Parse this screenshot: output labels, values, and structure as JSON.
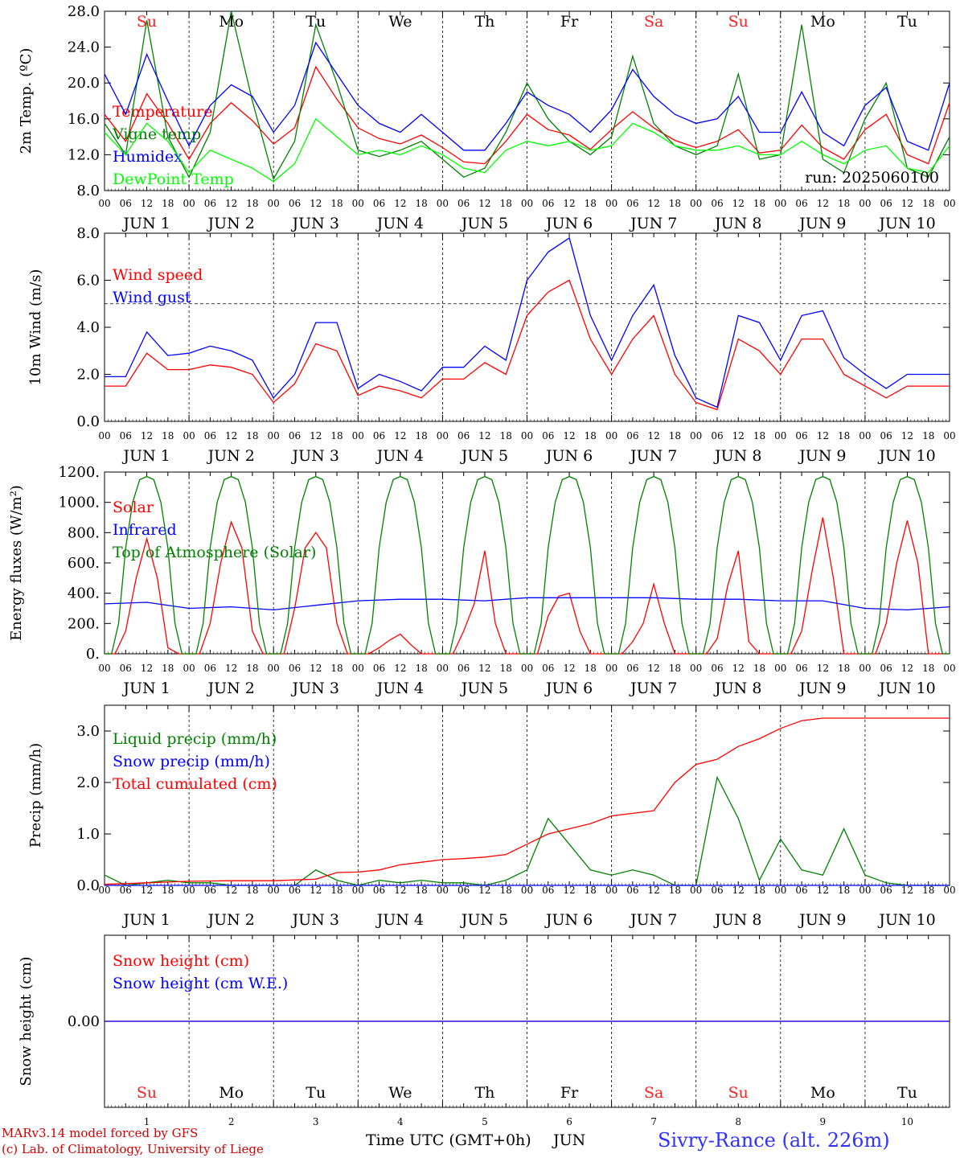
{
  "days": {
    "weekday_labels": [
      "Su",
      "Mo",
      "Tu",
      "We",
      "Th",
      "Fr",
      "Sa",
      "Su",
      "Mo",
      "Tu"
    ],
    "weekend_color": "#ff2020",
    "weekday_color": "#000000",
    "hour_labels": [
      "00",
      "06",
      "12",
      "18"
    ],
    "date_labels": [
      "JUN  1",
      "JUN  2",
      "JUN  3",
      "JUN  4",
      "JUN  5",
      "JUN  6",
      "JUN  7",
      "JUN  8",
      "JUN  9",
      "JUN 10"
    ],
    "day_numbers": [
      "1",
      "2",
      "3",
      "4",
      "5",
      "6",
      "7",
      "8",
      "9",
      "10"
    ]
  },
  "footer": {
    "model_line": "MARv3.14 model forced by GFS",
    "lab_line": "(c) Lab. of Climatology, University of Liege",
    "xlabel": "Time UTC (GMT+0h)",
    "month": "JUN",
    "station": "Sivry-Rance (alt. 226m)",
    "station_color": "#3030ff"
  },
  "chart_data": [
    {
      "type": "line",
      "ylabel": "2m Temp. (ºC)",
      "ylim": [
        8,
        28
      ],
      "yticks": [
        "8.0",
        "12.0",
        "16.0",
        "20.0",
        "24.0",
        "28.0"
      ],
      "annotation": "run: 2025060100",
      "x_unit": "hours since 2025-06-01 00 UTC",
      "series": [
        {
          "name": "Temperature",
          "color": "#ff0000",
          "x": [
            0,
            6,
            12,
            18,
            24,
            30,
            36,
            42,
            48,
            54,
            60,
            66,
            72,
            78,
            84,
            90,
            96,
            102,
            108,
            114,
            120,
            126,
            132,
            138,
            144,
            150,
            156,
            162,
            168,
            174,
            180,
            186,
            192,
            198,
            204,
            210,
            216,
            222,
            228,
            234,
            240
          ],
          "y": [
            16.5,
            13.5,
            18.8,
            15.5,
            11.5,
            15.5,
            17.8,
            15.8,
            13.2,
            15.0,
            21.8,
            18.2,
            15.0,
            13.8,
            13.2,
            14.2,
            12.8,
            11.2,
            11.0,
            13.5,
            16.5,
            14.8,
            14.2,
            12.6,
            14.8,
            16.8,
            15.0,
            13.6,
            12.8,
            13.5,
            14.8,
            12.2,
            12.5,
            15.3,
            12.8,
            11.5,
            14.8,
            16.5,
            12.0,
            11.0,
            17.8
          ]
        },
        {
          "name": "Vigne temp",
          "color": "#008000",
          "x": [
            0,
            6,
            12,
            18,
            24,
            30,
            36,
            42,
            48,
            54,
            60,
            66,
            72,
            78,
            84,
            90,
            96,
            102,
            108,
            114,
            120,
            126,
            132,
            138,
            144,
            150,
            156,
            162,
            168,
            174,
            180,
            186,
            192,
            198,
            204,
            210,
            216,
            222,
            228,
            234,
            240
          ],
          "y": [
            15.5,
            12.0,
            27.0,
            14.0,
            9.5,
            14.5,
            28.0,
            18.0,
            9.3,
            13.5,
            26.5,
            20.0,
            12.5,
            11.8,
            12.5,
            13.5,
            11.5,
            9.5,
            10.5,
            14.5,
            20.0,
            16.0,
            13.5,
            12.0,
            14.0,
            23.0,
            15.5,
            13.0,
            12.0,
            13.0,
            21.0,
            11.5,
            12.0,
            26.5,
            11.5,
            10.0,
            16.0,
            20.0,
            10.5,
            9.5,
            14.0
          ]
        },
        {
          "name": "Humidex",
          "color": "#0000ff",
          "x": [
            0,
            6,
            12,
            18,
            24,
            30,
            36,
            42,
            48,
            54,
            60,
            66,
            72,
            78,
            84,
            90,
            96,
            102,
            108,
            114,
            120,
            126,
            132,
            138,
            144,
            150,
            156,
            162,
            168,
            174,
            180,
            186,
            192,
            198,
            204,
            210,
            216,
            222,
            228,
            234,
            240
          ],
          "y": [
            21.0,
            16.5,
            23.2,
            18.0,
            13.0,
            17.5,
            19.8,
            18.5,
            14.5,
            17.5,
            24.5,
            21.0,
            17.5,
            15.5,
            14.5,
            16.5,
            14.5,
            12.5,
            12.5,
            15.5,
            19.0,
            17.5,
            16.5,
            14.5,
            17.0,
            21.5,
            18.5,
            16.5,
            15.5,
            16.0,
            18.5,
            14.5,
            14.5,
            19.0,
            14.5,
            13.0,
            17.5,
            19.5,
            13.5,
            12.5,
            20.0
          ]
        },
        {
          "name": "DewPoint Temp",
          "color": "#00ff00",
          "x": [
            0,
            6,
            12,
            18,
            24,
            30,
            36,
            42,
            48,
            54,
            60,
            66,
            72,
            78,
            84,
            90,
            96,
            102,
            108,
            114,
            120,
            126,
            132,
            138,
            144,
            150,
            156,
            162,
            168,
            174,
            180,
            186,
            192,
            198,
            204,
            210,
            216,
            222,
            228,
            234,
            240
          ],
          "y": [
            14.5,
            12.0,
            15.5,
            13.5,
            10.0,
            12.5,
            11.5,
            10.5,
            9.0,
            11.0,
            16.0,
            14.0,
            12.0,
            12.5,
            12.0,
            13.0,
            12.0,
            10.5,
            10.0,
            12.5,
            13.5,
            13.0,
            13.5,
            12.5,
            13.0,
            15.5,
            14.5,
            13.0,
            12.5,
            12.5,
            13.0,
            12.0,
            12.0,
            13.5,
            12.0,
            11.0,
            12.5,
            13.0,
            10.5,
            10.0,
            13.0
          ]
        }
      ]
    },
    {
      "type": "line",
      "ylabel": "10m Wind (m/s)",
      "ylim": [
        0,
        8
      ],
      "yticks": [
        "0.0",
        "2.0",
        "4.0",
        "6.0",
        "8.0"
      ],
      "reference_line": 5,
      "x_unit": "hours since 2025-06-01 00 UTC",
      "series": [
        {
          "name": "Wind speed",
          "color": "#ff0000",
          "x": [
            0,
            6,
            12,
            18,
            24,
            30,
            36,
            42,
            48,
            54,
            60,
            66,
            72,
            78,
            84,
            90,
            96,
            102,
            108,
            114,
            120,
            126,
            132,
            138,
            144,
            150,
            156,
            162,
            168,
            174,
            180,
            186,
            192,
            198,
            204,
            210,
            216,
            222,
            228,
            234,
            240
          ],
          "y": [
            1.5,
            1.5,
            2.9,
            2.2,
            2.2,
            2.4,
            2.3,
            2.0,
            0.8,
            1.6,
            3.3,
            3.0,
            1.1,
            1.5,
            1.3,
            1.0,
            1.8,
            1.8,
            2.5,
            2.0,
            4.5,
            5.5,
            6.0,
            3.5,
            2.0,
            3.5,
            4.5,
            2.0,
            0.8,
            0.5,
            3.5,
            3.0,
            2.0,
            3.5,
            3.5,
            2.0,
            1.5,
            1.0,
            1.5,
            1.5,
            1.5
          ]
        },
        {
          "name": "Wind gust",
          "color": "#0000ff",
          "x": [
            0,
            6,
            12,
            18,
            24,
            30,
            36,
            42,
            48,
            54,
            60,
            66,
            72,
            78,
            84,
            90,
            96,
            102,
            108,
            114,
            120,
            126,
            132,
            138,
            144,
            150,
            156,
            162,
            168,
            174,
            180,
            186,
            192,
            198,
            204,
            210,
            216,
            222,
            228,
            234,
            240
          ],
          "y": [
            1.9,
            1.9,
            3.8,
            2.8,
            2.9,
            3.2,
            3.0,
            2.6,
            1.0,
            2.0,
            4.2,
            4.2,
            1.4,
            2.0,
            1.7,
            1.3,
            2.3,
            2.3,
            3.2,
            2.6,
            6.0,
            7.2,
            7.8,
            4.5,
            2.6,
            4.5,
            5.8,
            2.8,
            1.0,
            0.6,
            4.5,
            4.2,
            2.6,
            4.5,
            4.7,
            2.7,
            2.0,
            1.4,
            2.0,
            2.0,
            2.0
          ]
        }
      ]
    },
    {
      "type": "line",
      "ylabel": "Energy fluxes (W/m²)",
      "ylim": [
        0,
        1200
      ],
      "yticks": [
        "0.",
        "200.",
        "400.",
        "600.",
        "800.",
        "1000.",
        "1200."
      ],
      "x_unit": "hours since 2025-06-01 00 UTC",
      "series": [
        {
          "name": "Solar",
          "color": "#ff0000",
          "x": [
            0,
            3,
            6,
            9,
            12,
            15,
            18,
            21,
            24,
            27,
            30,
            33,
            36,
            39,
            42,
            45,
            48,
            51,
            54,
            57,
            60,
            63,
            66,
            69,
            72,
            75,
            78,
            81,
            84,
            87,
            90,
            93,
            96,
            99,
            102,
            105,
            108,
            111,
            114,
            117,
            120,
            123,
            126,
            129,
            132,
            135,
            138,
            141,
            144,
            147,
            150,
            153,
            156,
            159,
            162,
            165,
            168,
            171,
            174,
            177,
            180,
            183,
            186,
            189,
            192,
            195,
            198,
            201,
            204,
            207,
            210,
            213,
            216,
            219,
            222,
            225,
            228,
            231,
            234,
            237,
            240
          ],
          "y": [
            0,
            0,
            150,
            500,
            760,
            500,
            40,
            0,
            0,
            0,
            200,
            600,
            870,
            700,
            150,
            0,
            0,
            0,
            300,
            700,
            800,
            700,
            200,
            0,
            0,
            0,
            40,
            90,
            130,
            60,
            0,
            0,
            0,
            0,
            150,
            330,
            680,
            200,
            0,
            0,
            0,
            0,
            250,
            380,
            400,
            150,
            0,
            0,
            0,
            0,
            80,
            200,
            460,
            200,
            0,
            0,
            0,
            0,
            100,
            450,
            680,
            80,
            0,
            0,
            0,
            0,
            150,
            550,
            900,
            500,
            0,
            0,
            0,
            0,
            200,
            600,
            880,
            600,
            0,
            0,
            0
          ]
        },
        {
          "name": "Infrared",
          "color": "#0000ff",
          "x": [
            0,
            12,
            24,
            36,
            48,
            60,
            72,
            84,
            96,
            108,
            120,
            132,
            144,
            156,
            168,
            180,
            192,
            204,
            216,
            228,
            240
          ],
          "y": [
            330,
            340,
            300,
            310,
            290,
            320,
            350,
            360,
            360,
            350,
            370,
            370,
            370,
            370,
            360,
            360,
            350,
            350,
            300,
            290,
            310
          ]
        },
        {
          "name": "Top of Atmosphere (Solar)",
          "color": "#008000",
          "x": [
            0,
            2,
            4,
            6,
            8,
            10,
            12,
            14,
            16,
            18,
            20,
            22,
            24
          ],
          "y": [
            0,
            0,
            200,
            700,
            1000,
            1150,
            1170,
            1150,
            1000,
            700,
            200,
            0,
            0
          ],
          "note": "repeats daily"
        }
      ]
    },
    {
      "type": "line",
      "ylabel": "Precip (mm/h)",
      "ylim": [
        0,
        3.5
      ],
      "yticks": [
        "0.0",
        "1.0",
        "2.0",
        "3.0"
      ],
      "x_unit": "hours since 2025-06-01 00 UTC",
      "series": [
        {
          "name": "Liquid precip (mm/h)",
          "color": "#008000",
          "x": [
            0,
            6,
            12,
            18,
            24,
            30,
            36,
            42,
            48,
            54,
            60,
            66,
            72,
            78,
            84,
            90,
            96,
            102,
            108,
            114,
            120,
            126,
            132,
            138,
            144,
            150,
            156,
            162,
            168,
            174,
            180,
            186,
            192,
            198,
            204,
            210,
            216,
            222,
            228,
            234,
            240
          ],
          "y": [
            0.2,
            0.0,
            0.05,
            0.1,
            0.05,
            0.05,
            0.0,
            0.0,
            0.0,
            0.0,
            0.3,
            0.1,
            0.0,
            0.1,
            0.05,
            0.1,
            0.05,
            0.05,
            0.0,
            0.1,
            0.3,
            1.3,
            0.8,
            0.3,
            0.2,
            0.3,
            0.2,
            0.0,
            0.0,
            2.1,
            1.3,
            0.1,
            0.9,
            0.3,
            0.2,
            1.1,
            0.2,
            0.05,
            0.0,
            0.0,
            0.0
          ]
        },
        {
          "name": "Snow precip (mm/h)",
          "color": "#0000ff",
          "x": [
            0,
            240
          ],
          "y": [
            0,
            0
          ]
        },
        {
          "name": "Total cumulated (cm)",
          "color": "#ff0000",
          "x": [
            0,
            12,
            24,
            36,
            48,
            60,
            66,
            72,
            78,
            84,
            90,
            96,
            102,
            108,
            114,
            120,
            126,
            132,
            138,
            144,
            150,
            156,
            162,
            168,
            174,
            180,
            186,
            192,
            198,
            204,
            210,
            216,
            222,
            228,
            234,
            240
          ],
          "y": [
            0.02,
            0.05,
            0.08,
            0.09,
            0.09,
            0.12,
            0.25,
            0.26,
            0.3,
            0.4,
            0.45,
            0.5,
            0.52,
            0.55,
            0.6,
            0.8,
            1.0,
            1.1,
            1.2,
            1.35,
            1.4,
            1.45,
            2.0,
            2.35,
            2.45,
            2.7,
            2.85,
            3.05,
            3.2,
            3.25,
            3.25,
            3.25,
            3.25,
            3.25,
            3.25,
            3.25
          ]
        }
      ]
    },
    {
      "type": "line",
      "ylabel": "Snow height (cm)",
      "ylim": [
        -1,
        1
      ],
      "yticks": [
        "0.00"
      ],
      "x_unit": "hours since 2025-06-01 00 UTC",
      "series": [
        {
          "name": "Snow height (cm)",
          "color": "#ff0000",
          "x": [
            0,
            240
          ],
          "y": [
            0,
            0
          ]
        },
        {
          "name": "Snow height (cm W.E.)",
          "color": "#0000ff",
          "x": [
            0,
            240
          ],
          "y": [
            0,
            0
          ]
        }
      ]
    }
  ]
}
